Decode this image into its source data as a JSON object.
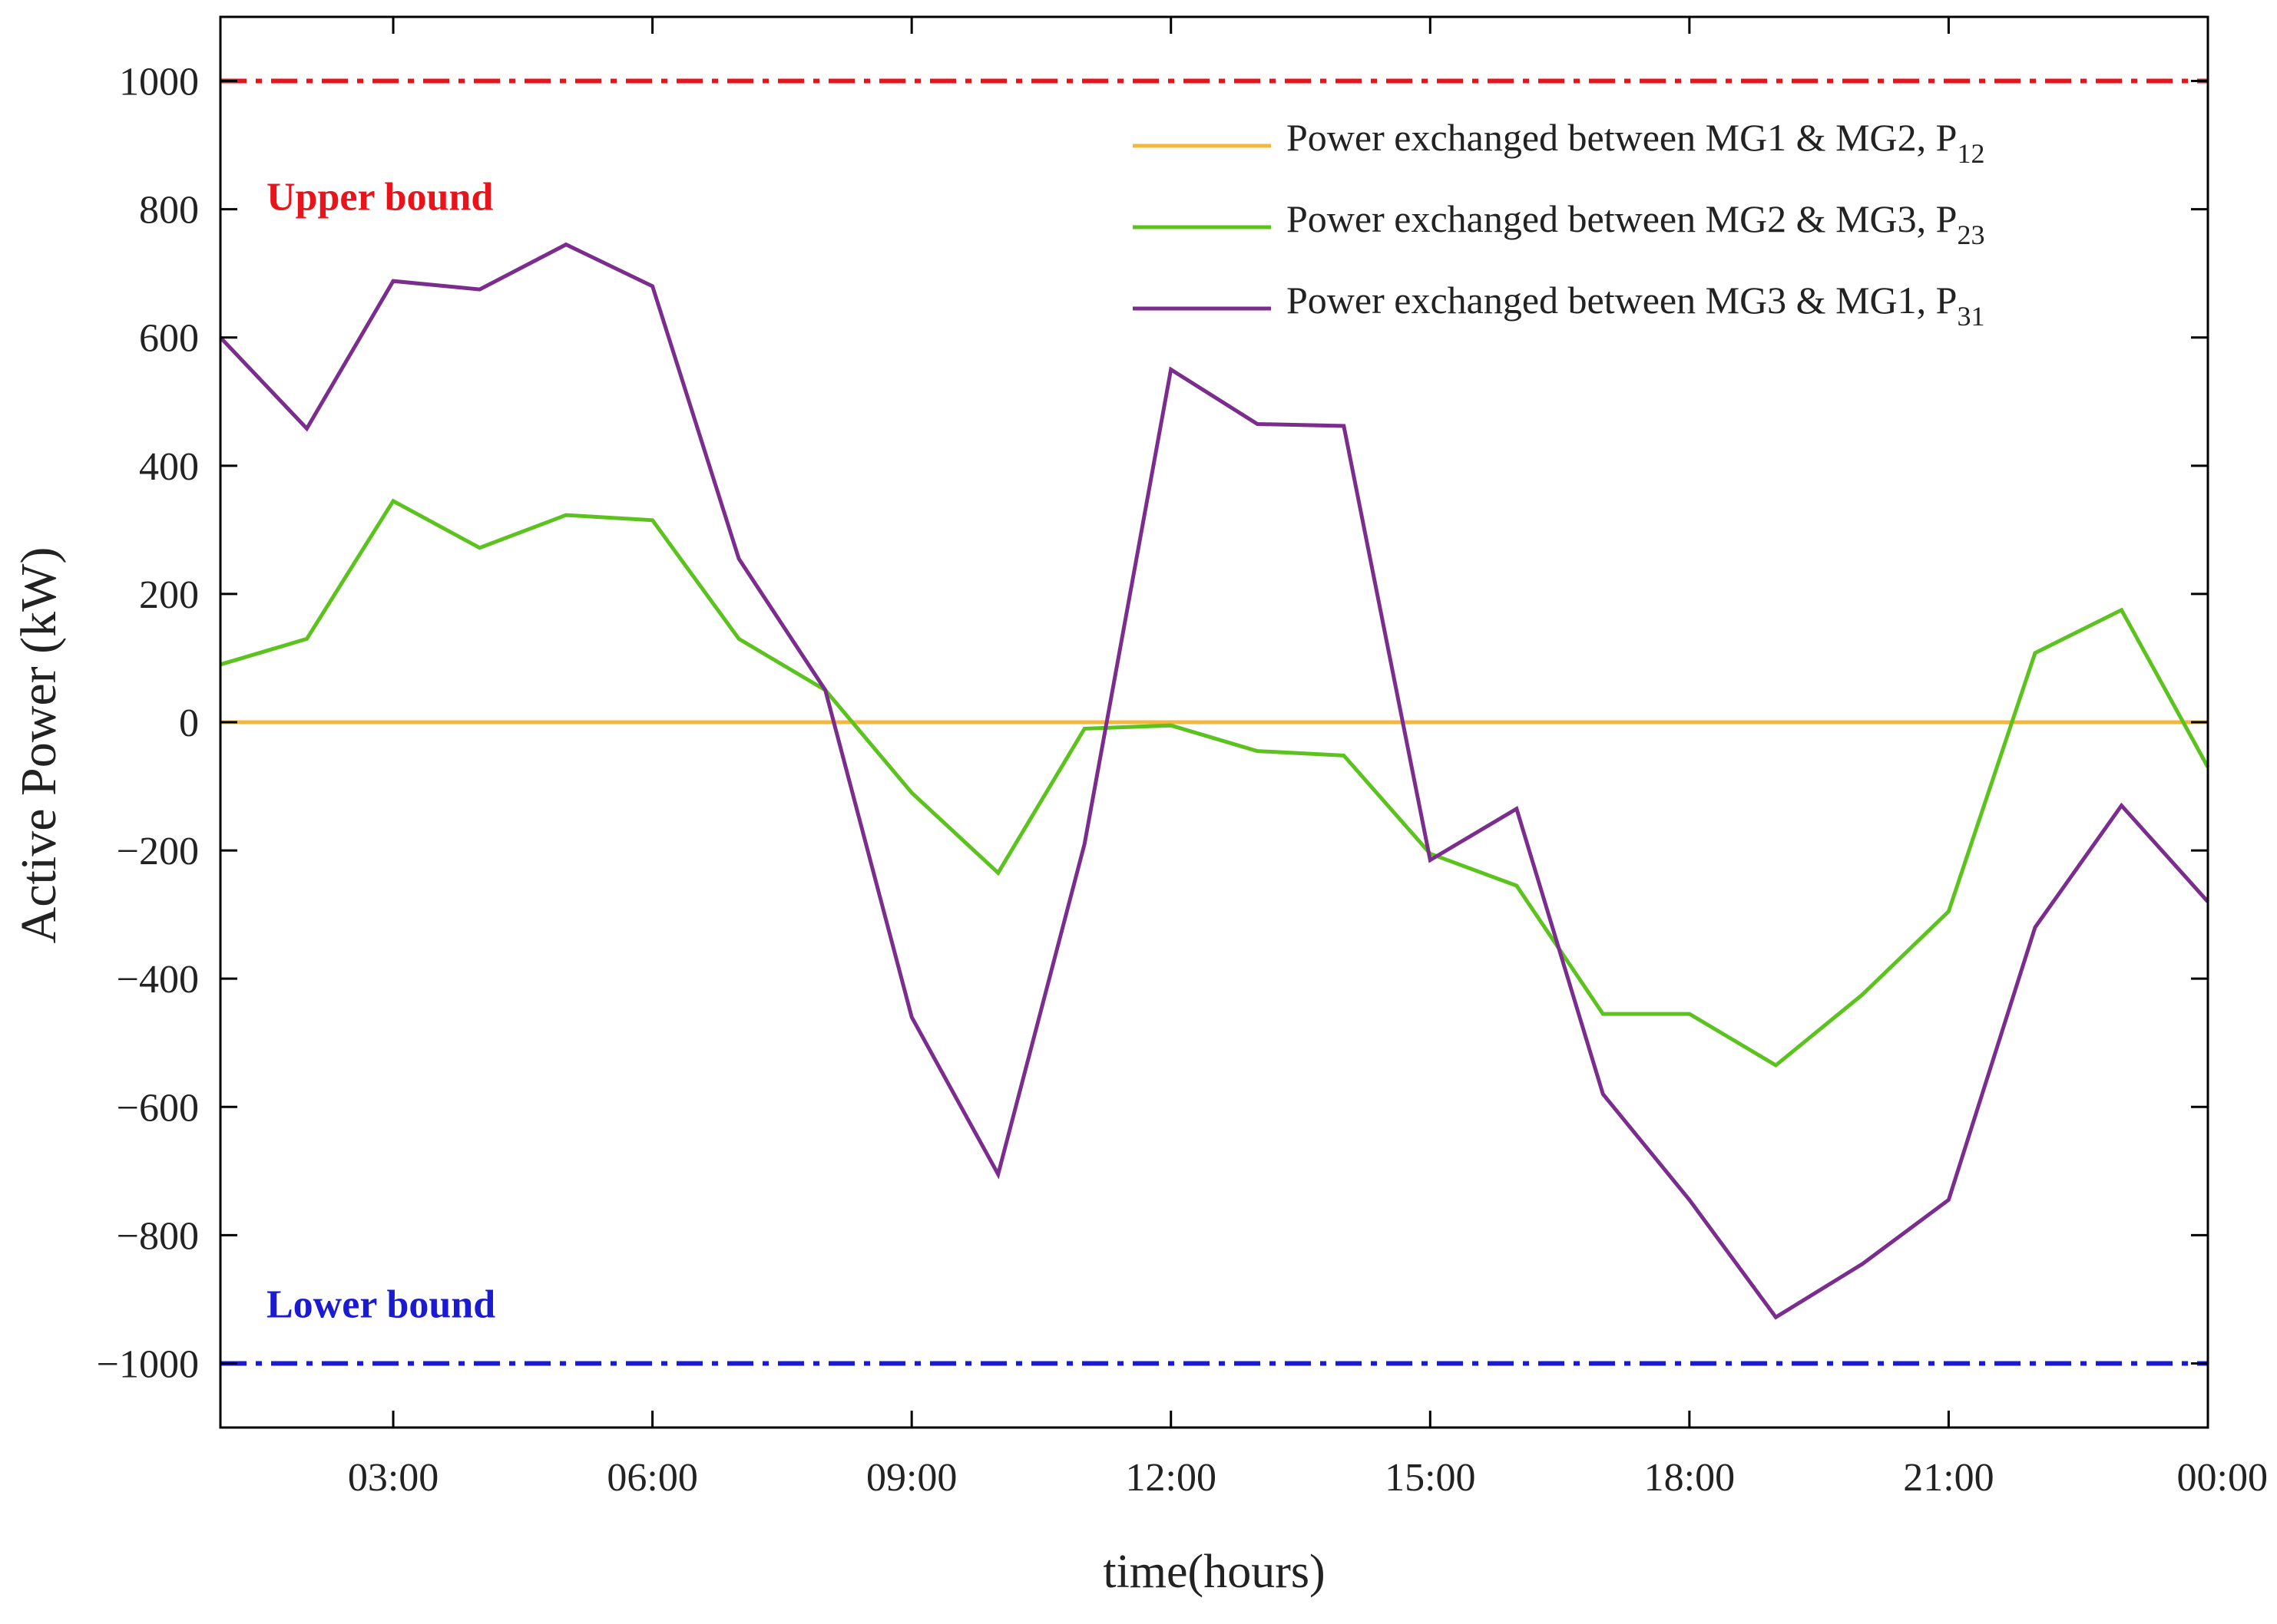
{
  "chart_data": {
    "type": "line",
    "xlabel": "time(hours)",
    "ylabel": "Active Power (kW)",
    "ylim": [
      -1100,
      1100
    ],
    "xlim": [
      1,
      24
    ],
    "yticks": [
      1000,
      800,
      600,
      400,
      200,
      0,
      -200,
      -400,
      -600,
      -800,
      -1000
    ],
    "ytick_labels": [
      "1000",
      "800",
      "600",
      "400",
      "200",
      "0",
      "−200",
      "−400",
      "−600",
      "−800",
      "−1000"
    ],
    "xticks": [
      3,
      6,
      9,
      12,
      15,
      18,
      21,
      24
    ],
    "xtick_labels": [
      "03:00",
      "06:00",
      "09:00",
      "12:00",
      "15:00",
      "18:00",
      "21:00",
      "00:00"
    ],
    "x": [
      1,
      2,
      3,
      4,
      5,
      6,
      7,
      8,
      9,
      10,
      11,
      12,
      13,
      14,
      15,
      16,
      17,
      18,
      19,
      20,
      21,
      22,
      23,
      24
    ],
    "series": [
      {
        "name": "Power exchanged between MG1 & MG2, P",
        "subscript": "12",
        "color": "#f5b73b",
        "values": [
          0,
          0,
          0,
          0,
          0,
          0,
          0,
          0,
          0,
          0,
          0,
          0,
          0,
          0,
          0,
          0,
          0,
          0,
          0,
          0,
          0,
          0,
          0,
          0
        ]
      },
      {
        "name": "Power exchanged between MG2 & MG3, P",
        "subscript": "23",
        "color": "#5cc21e",
        "values": [
          90,
          130,
          345,
          272,
          323,
          315,
          130,
          50,
          -110,
          -235,
          -10,
          -5,
          -45,
          -52,
          -205,
          -255,
          -455,
          -455,
          -535,
          -425,
          -295,
          108,
          175,
          -70
        ]
      },
      {
        "name": "Power exchanged between MG3 & MG1, P",
        "subscript": "31",
        "color": "#7b2d8e",
        "values": [
          600,
          458,
          688,
          675,
          745,
          680,
          255,
          50,
          -460,
          -705,
          -190,
          550,
          465,
          462,
          -215,
          -135,
          -580,
          -745,
          -928,
          -845,
          -745,
          -320,
          -130,
          -280
        ]
      }
    ],
    "bounds": [
      {
        "label": "Upper bound",
        "value": 1000,
        "color": "#e8141b"
      },
      {
        "label": "Lower bound",
        "value": -1000,
        "color": "#1a1ad0"
      }
    ],
    "legend_position": "top-right",
    "grid": false
  }
}
